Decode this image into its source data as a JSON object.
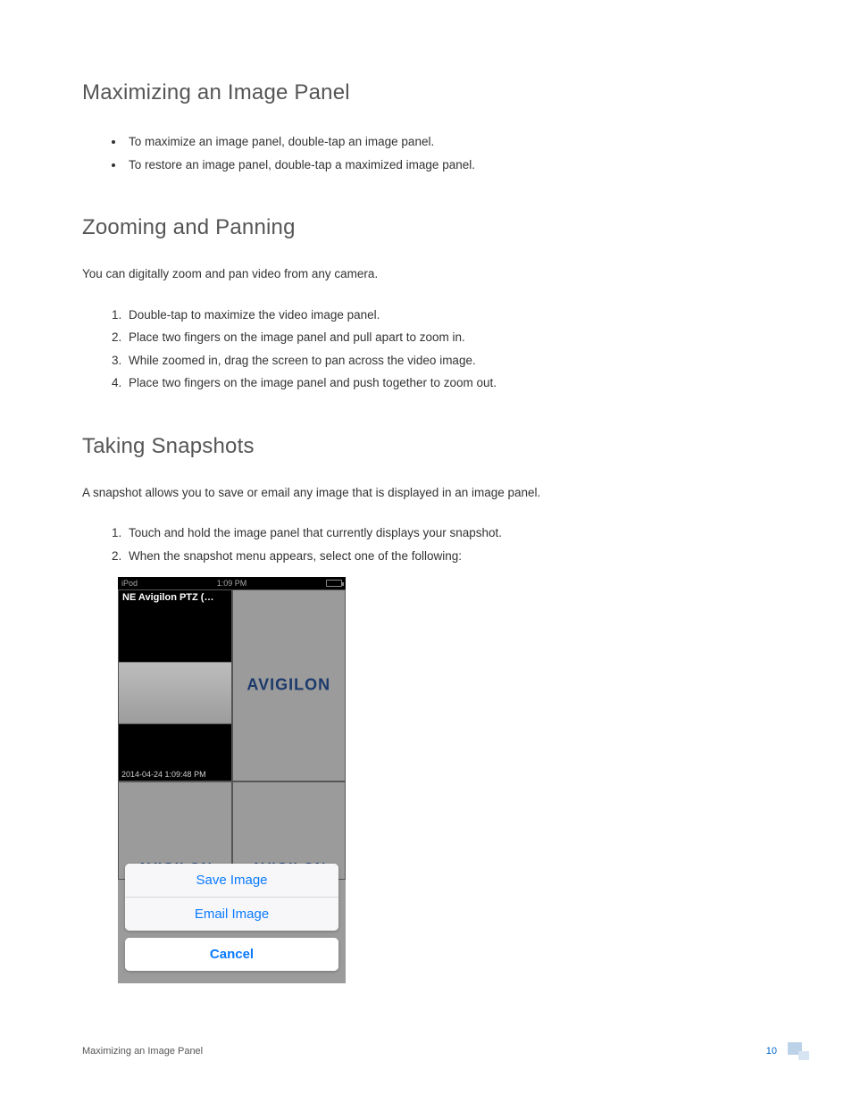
{
  "sections": {
    "maximizing": {
      "heading": "Maximizing an Image Panel",
      "bullets": [
        "To maximize an image panel, double-tap an image panel.",
        "To restore an image panel, double-tap a maximized image panel."
      ]
    },
    "zooming": {
      "heading": "Zooming and Panning",
      "intro": "You can digitally zoom and pan video from any camera.",
      "steps": [
        "Double-tap to maximize the video image panel.",
        "Place two fingers on the image panel and pull apart to zoom in.",
        "While zoomed in, drag the screen to pan across the video image.",
        "Place two fingers on the image panel and push together to zoom out."
      ]
    },
    "snapshots": {
      "heading": "Taking Snapshots",
      "intro": "A snapshot allows you to save or email any image that is displayed in an image panel.",
      "steps": [
        "Touch and hold the image panel that currently displays your snapshot.",
        "When the snapshot menu appears, select one of the following:"
      ]
    }
  },
  "phone": {
    "status": {
      "device": "iPod",
      "time": "1:09 PM"
    },
    "camera_title": "NE Avigilon PTZ (…",
    "timestamp": "2014-04-24 1:09:48 PM",
    "brand": "avigilon",
    "actions": {
      "save": "Save Image",
      "email": "Email Image",
      "cancel": "Cancel"
    }
  },
  "footer": {
    "label": "Maximizing an Image Panel",
    "page": "10"
  },
  "colors": {
    "heading": "#555555",
    "body_text": "#333333",
    "link_blue": "#0a7aff",
    "page_number": "#0066cc",
    "brand_blue": "#1b3a6b",
    "phone_bg": "#9b9b9b"
  }
}
